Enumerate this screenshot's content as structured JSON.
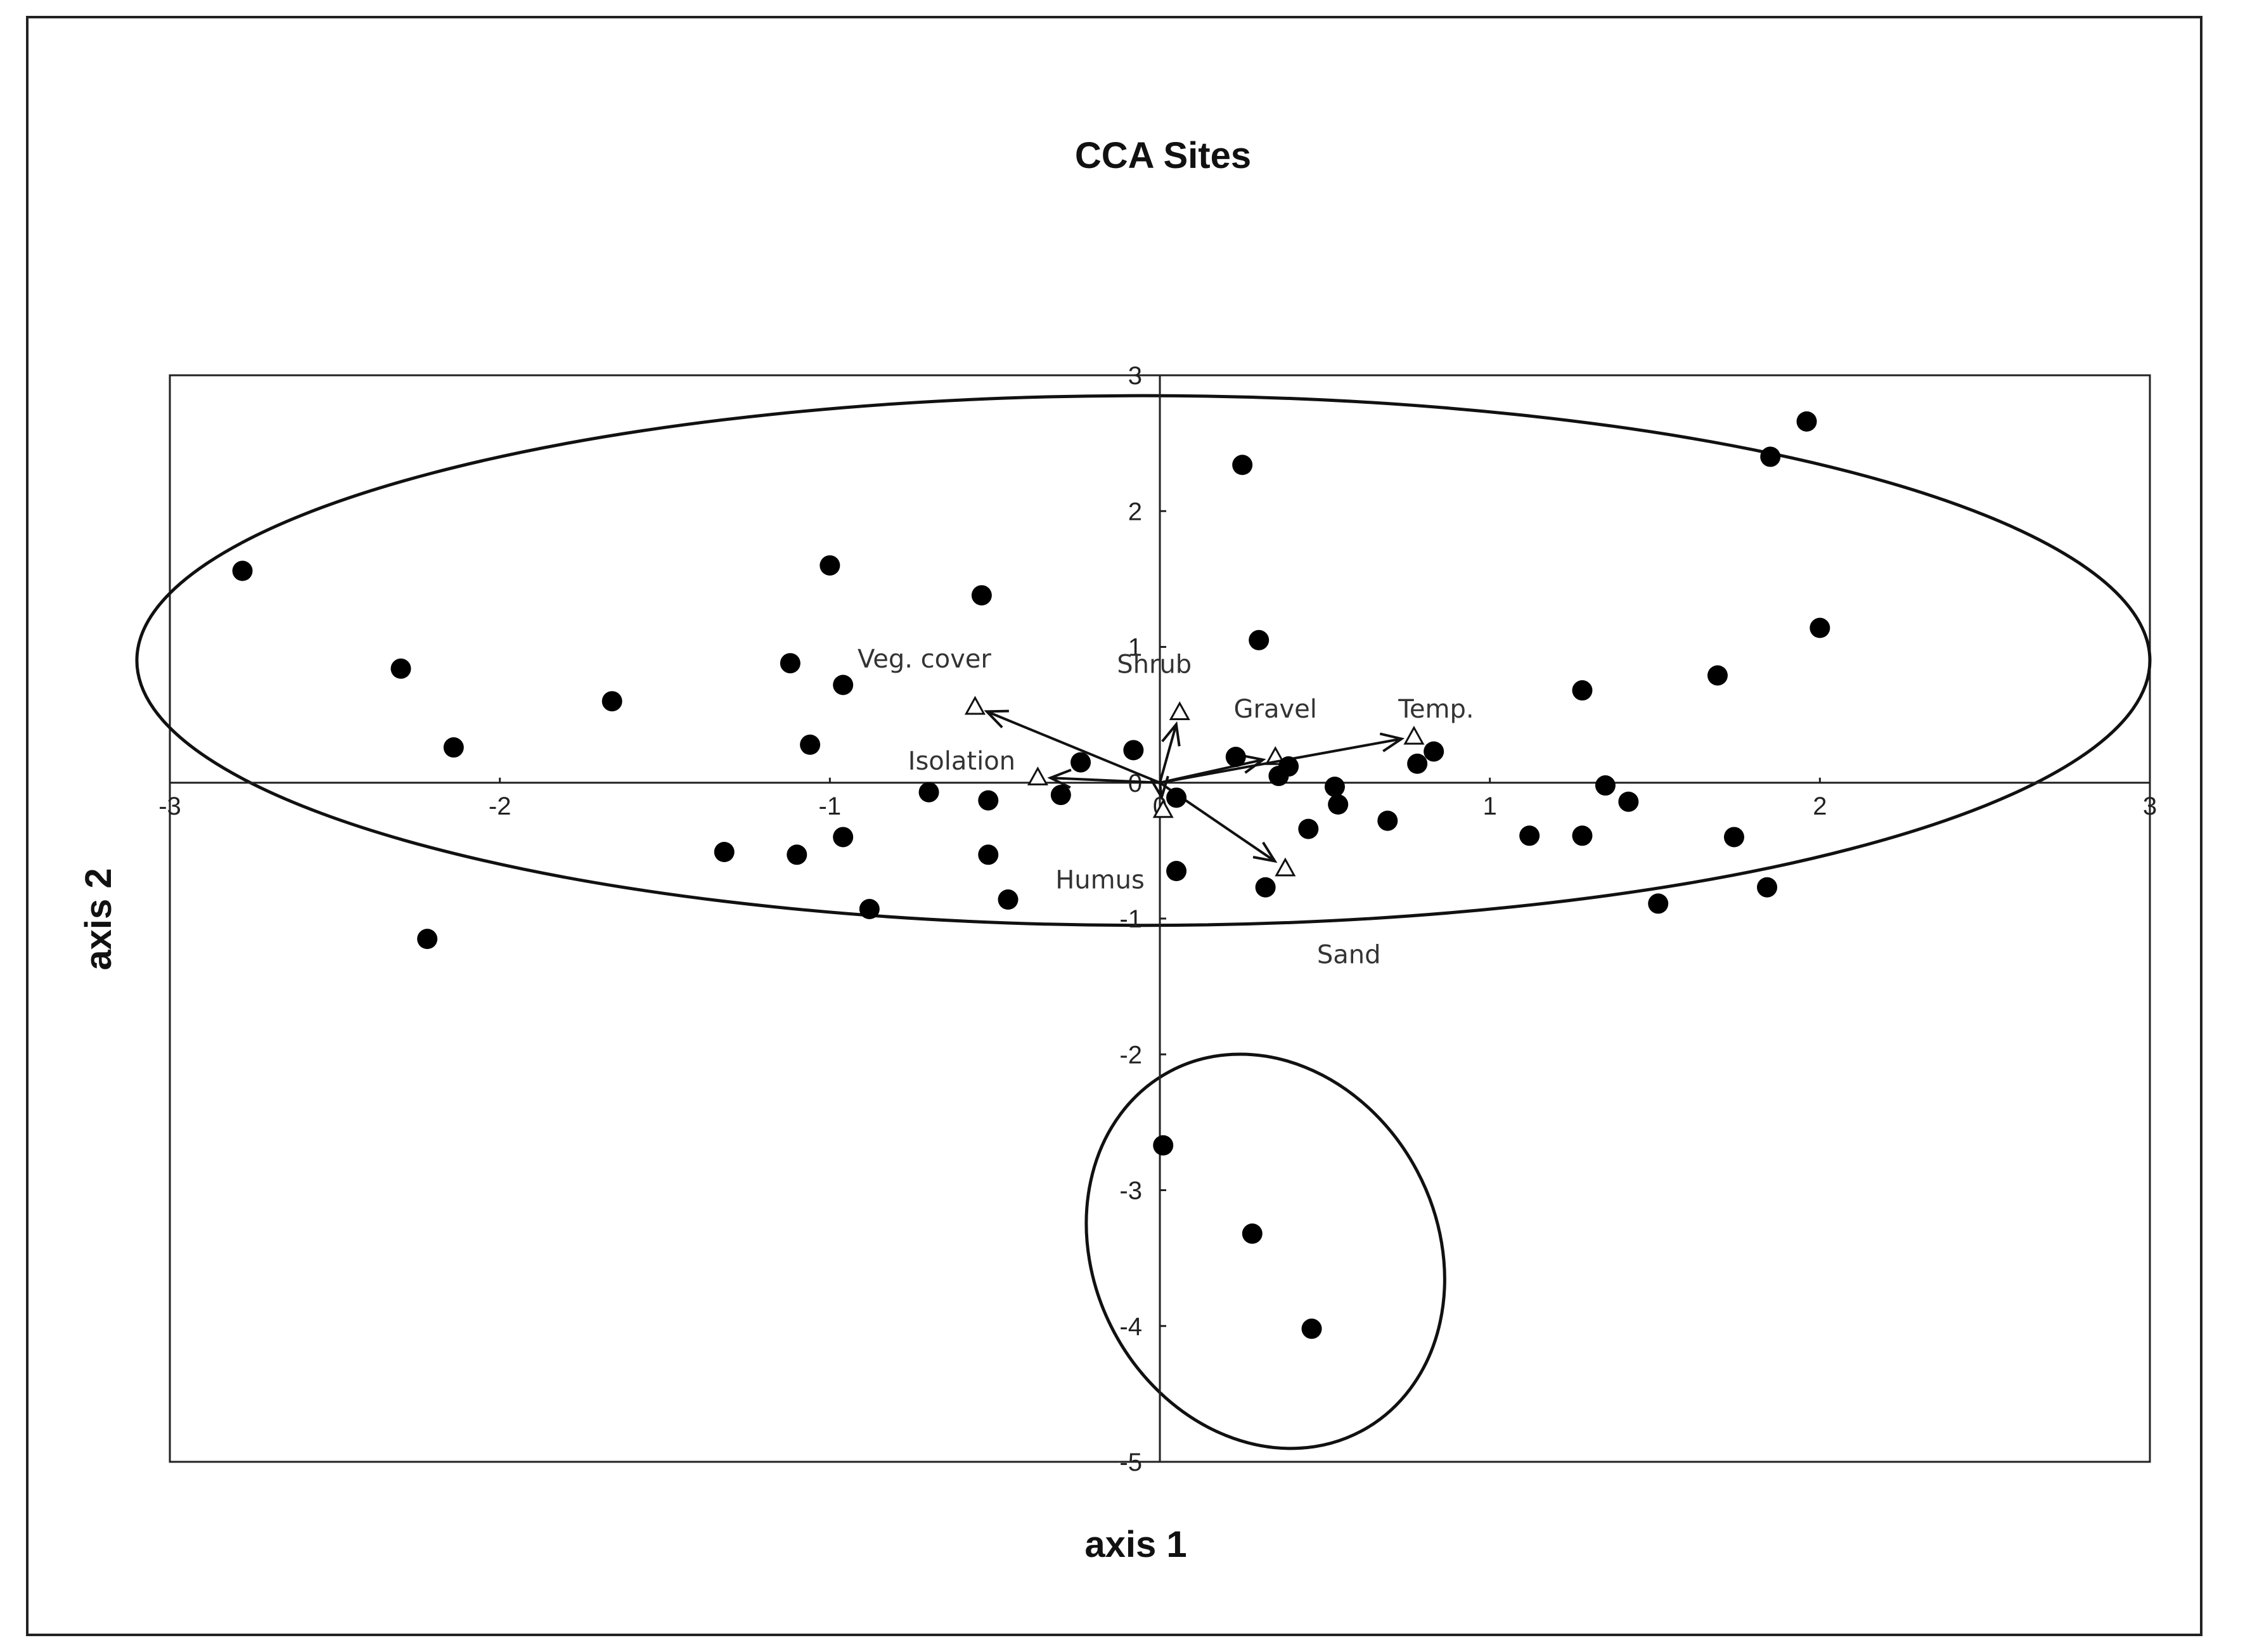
{
  "chart_data": {
    "type": "scatter",
    "title": "CCA Sites",
    "xlabel": "axis 1",
    "ylabel": "axis 2",
    "xlim": [
      -3,
      3
    ],
    "ylim": [
      -5,
      3
    ],
    "x_ticks": [
      "-3",
      "-2",
      "-1",
      "0",
      "1",
      "2",
      "3"
    ],
    "y_ticks": [
      "3",
      "2",
      "1",
      "0",
      "-1",
      "-2",
      "-3",
      "-4",
      "-5"
    ],
    "grid": false,
    "legend": "none",
    "series": [
      {
        "marker": "filled-circle",
        "color": "#000000",
        "points": [
          [
            -2.78,
            1.56
          ],
          [
            -2.3,
            0.84
          ],
          [
            -2.14,
            0.26
          ],
          [
            -1.66,
            0.6
          ],
          [
            -1.32,
            -0.51
          ],
          [
            -1.12,
            0.88
          ],
          [
            -1.1,
            -0.53
          ],
          [
            -1.06,
            0.28
          ],
          [
            -1.0,
            1.6
          ],
          [
            -0.96,
            0.72
          ],
          [
            -0.96,
            -0.4
          ],
          [
            -0.88,
            -0.93
          ],
          [
            -0.7,
            -0.07
          ],
          [
            -0.54,
            1.38
          ],
          [
            -0.52,
            -0.13
          ],
          [
            -0.52,
            -0.53
          ],
          [
            -0.46,
            -0.86
          ],
          [
            -0.3,
            -0.09
          ],
          [
            -0.24,
            0.15
          ],
          [
            -0.08,
            0.24
          ],
          [
            -2.22,
            -1.15
          ],
          [
            0.25,
            2.34
          ],
          [
            0.3,
            1.05
          ],
          [
            0.05,
            -0.11
          ],
          [
            0.05,
            -0.65
          ],
          [
            0.23,
            0.19
          ],
          [
            0.32,
            -0.77
          ],
          [
            0.36,
            0.05
          ],
          [
            0.39,
            0.12
          ],
          [
            0.45,
            -0.34
          ],
          [
            0.53,
            -0.03
          ],
          [
            0.54,
            -0.16
          ],
          [
            0.69,
            -0.28
          ],
          [
            0.78,
            0.14
          ],
          [
            0.83,
            0.23
          ],
          [
            1.12,
            -0.39
          ],
          [
            1.28,
            0.68
          ],
          [
            1.28,
            -0.39
          ],
          [
            1.35,
            -0.02
          ],
          [
            1.42,
            -0.14
          ],
          [
            1.51,
            -0.89
          ],
          [
            1.69,
            0.79
          ],
          [
            1.74,
            -0.4
          ],
          [
            1.84,
            -0.77
          ],
          [
            1.85,
            2.4
          ],
          [
            1.96,
            2.66
          ],
          [
            2.0,
            1.14
          ],
          [
            0.01,
            -2.67
          ],
          [
            0.28,
            -3.32
          ],
          [
            0.46,
            -4.02
          ]
        ]
      }
    ],
    "environmental_variables": [
      {
        "name": "Veg. cover",
        "x": -0.56,
        "y": 0.56
      },
      {
        "name": "Shrub",
        "x": 0.06,
        "y": 0.52
      },
      {
        "name": "Gravel",
        "x": 0.35,
        "y": 0.19
      },
      {
        "name": "Temp.",
        "x": 0.77,
        "y": 0.34
      },
      {
        "name": "Isolation",
        "x": -0.37,
        "y": 0.04
      },
      {
        "name": "Humus",
        "x": 0.01,
        "y": -0.2
      },
      {
        "name": "Sand",
        "x": 0.38,
        "y": -0.63
      }
    ],
    "group_ellipses": [
      {
        "center": [
          -0.05,
          0.9
        ],
        "radii": [
          3.05,
          1.95
        ],
        "rotation_deg": 0
      },
      {
        "center": [
          0.32,
          -3.45
        ],
        "radii": [
          0.52,
          1.5
        ],
        "rotation_deg": -28
      }
    ]
  }
}
